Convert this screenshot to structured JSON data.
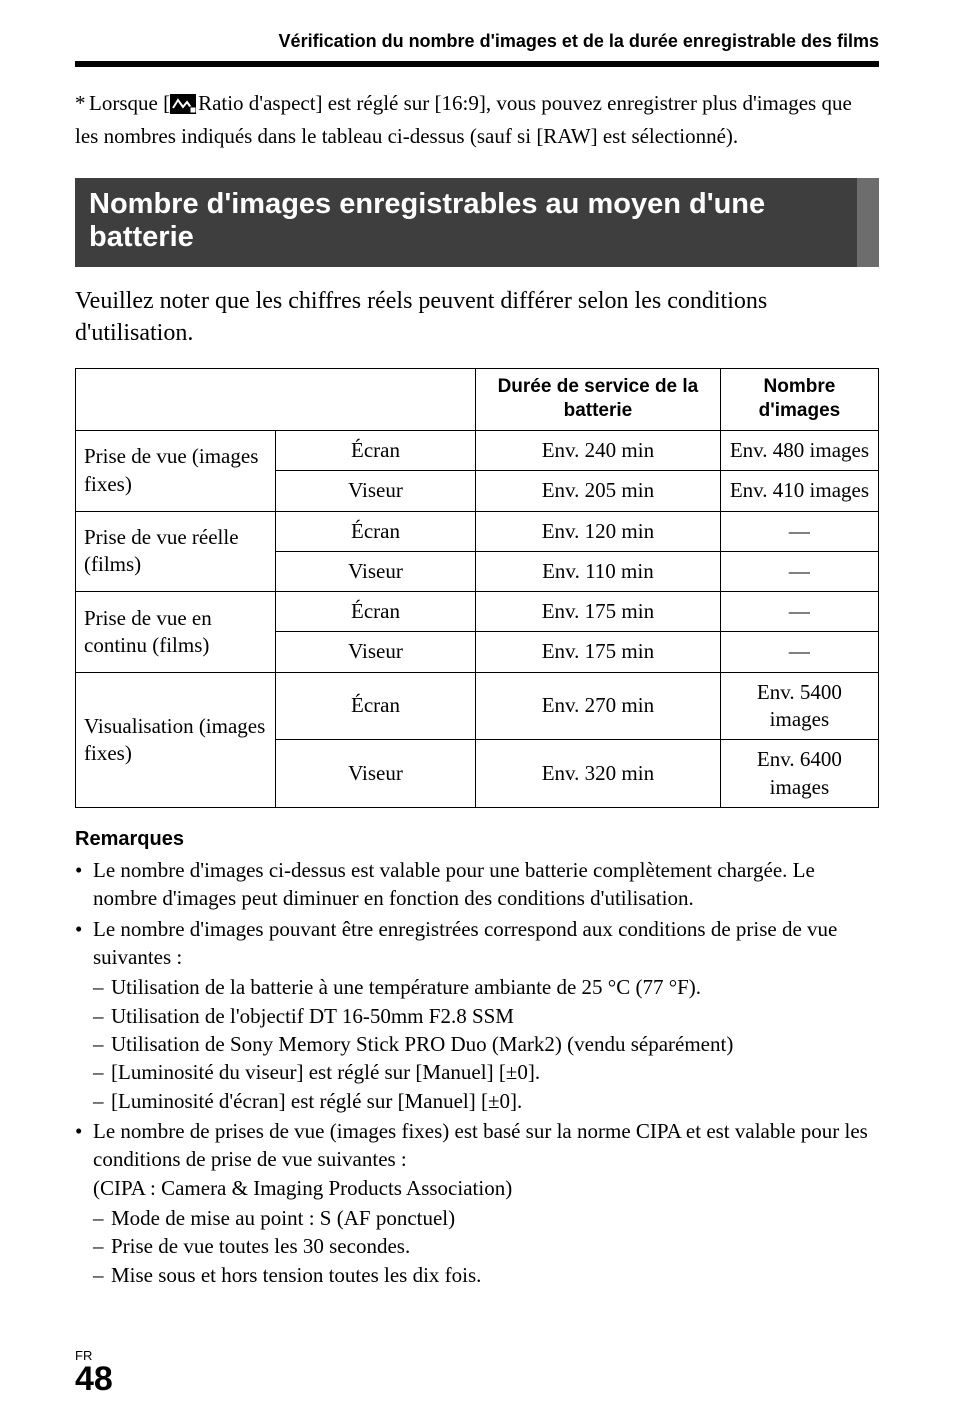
{
  "header": {
    "running_head": "Vérification du nombre d'images et de la durée enregistrable des films"
  },
  "footnote": {
    "marker": "*",
    "icon_name": "aspect-ratio-icon",
    "text_before": "Lorsque [",
    "text_after": "Ratio d'aspect] est réglé sur [16:9], vous pouvez enregistrer plus d'images que les nombres indiqués dans le tableau ci-dessus (sauf si [RAW] est sélectionné)."
  },
  "section": {
    "title": "Nombre d'images enregistrables au moyen d'une batterie",
    "intro": "Veuillez noter que les chiffres réels peuvent différer selon les conditions d'utilisation."
  },
  "table": {
    "col_headers": {
      "c1": "",
      "c2": "",
      "c3": "Durée de service de la batterie",
      "c4": "Nombre d'images"
    },
    "groups": [
      {
        "label": "Prise de vue (images fixes)",
        "rows": [
          {
            "sub": "Écran",
            "duration": "Env. 240 min",
            "count": "Env. 480 images"
          },
          {
            "sub": "Viseur",
            "duration": "Env. 205 min",
            "count": "Env. 410 images"
          }
        ]
      },
      {
        "label": "Prise de vue réelle (films)",
        "rows": [
          {
            "sub": "Écran",
            "duration": "Env. 120 min",
            "count": "—"
          },
          {
            "sub": "Viseur",
            "duration": "Env. 110 min",
            "count": "—"
          }
        ]
      },
      {
        "label": "Prise de vue en continu (films)",
        "rows": [
          {
            "sub": "Écran",
            "duration": "Env. 175 min",
            "count": "—"
          },
          {
            "sub": "Viseur",
            "duration": "Env. 175 min",
            "count": "—"
          }
        ]
      },
      {
        "label": "Visualisation (images fixes)",
        "rows": [
          {
            "sub": "Écran",
            "duration": "Env. 270 min",
            "count": "Env. 5400 images"
          },
          {
            "sub": "Viseur",
            "duration": "Env. 320 min",
            "count": "Env. 6400 images"
          }
        ]
      }
    ]
  },
  "notes": {
    "heading": "Remarques",
    "items": [
      {
        "text": "Le nombre d'images ci-dessus est valable pour une batterie complètement chargée. Le nombre d'images peut diminuer en fonction des conditions d'utilisation."
      },
      {
        "text": "Le nombre d'images pouvant être enregistrées correspond aux conditions de prise de vue suivantes :",
        "sub": [
          "Utilisation de la batterie à une température ambiante de 25 °C (77 °F).",
          "Utilisation de l'objectif DT 16-50mm F2.8 SSM",
          "Utilisation de Sony Memory Stick PRO Duo (Mark2) (vendu séparément)",
          "[Luminosité du viseur] est réglé sur [Manuel] [±0].",
          "[Luminosité d'écran] est réglé sur [Manuel] [±0]."
        ]
      },
      {
        "text": "Le nombre de prises de vue (images fixes) est basé sur la norme CIPA et est valable pour les conditions de prise de vue suivantes :",
        "extra": "(CIPA : Camera & Imaging Products Association)",
        "sub": [
          "Mode de mise au point : S (AF ponctuel)",
          "Prise de vue toutes les 30 secondes.",
          "Mise sous et hors tension toutes les dix fois."
        ]
      }
    ]
  },
  "footer": {
    "lang": "FR",
    "page": "48"
  },
  "style": {
    "colors": {
      "band_bg": "#3e3e3e",
      "band_edge": "#6d6d6d",
      "text": "#000000",
      "bg": "#ffffff"
    },
    "fonts": {
      "serif": "Times New Roman",
      "sans": "Arial"
    }
  }
}
